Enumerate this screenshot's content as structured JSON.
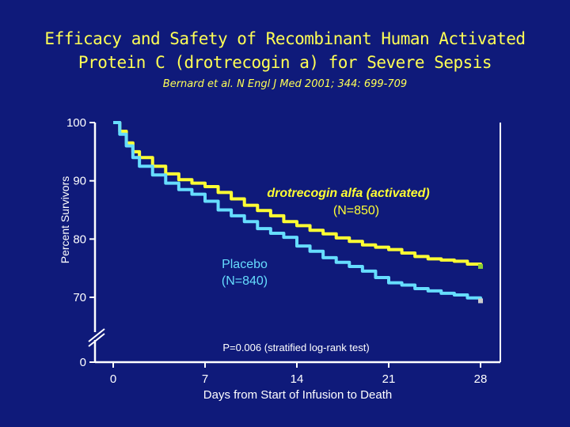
{
  "title_line1": "Efficacy and Safety of Recombinant Human Activated",
  "title_line2": "Protein C (drotrecogin a) for Severe Sepsis",
  "citation": "Bernard et al. N Engl J Med 2001; 344: 699-709",
  "colors": {
    "background": "#0f1a7a",
    "drotrecogin": "#ffff33",
    "placebo": "#66ddff",
    "axis": "#ffffff"
  },
  "chart_data": {
    "type": "line",
    "xlabel": "Days from Start of Infusion to Death",
    "ylabel": "Percent Survivors",
    "x_ticks": [
      "0",
      "7",
      "14",
      "21",
      "28"
    ],
    "y_ticks": [
      "100",
      "90",
      "80",
      "70",
      "0"
    ],
    "xlim": [
      0,
      28
    ],
    "ylim": [
      70,
      100
    ],
    "y_axis_break": true,
    "grid": false,
    "series": [
      {
        "name": "drotrecogin alfa (activated)",
        "n_label": "(N=850)",
        "x": [
          0,
          0.5,
          1,
          1.5,
          2,
          3,
          4,
          5,
          6,
          7,
          8,
          9,
          10,
          11,
          12,
          13,
          14,
          15,
          16,
          17,
          18,
          19,
          20,
          21,
          22,
          23,
          24,
          25,
          26,
          27,
          28
        ],
        "y": [
          100,
          98.5,
          96.5,
          95,
          94,
          92.5,
          91.2,
          90.2,
          89.6,
          89,
          88,
          86.9,
          85.8,
          84.9,
          84,
          83,
          82.3,
          81.5,
          80.9,
          80.2,
          79.6,
          79,
          78.6,
          78.2,
          77.6,
          77,
          76.6,
          76.4,
          76.2,
          75.7,
          75.3
        ]
      },
      {
        "name": "Placebo",
        "n_label": "(N=840)",
        "x": [
          0,
          0.5,
          1,
          1.5,
          2,
          3,
          4,
          5,
          6,
          7,
          8,
          9,
          10,
          11,
          12,
          13,
          14,
          15,
          16,
          17,
          18,
          19,
          20,
          21,
          22,
          23,
          24,
          25,
          26,
          27,
          28
        ],
        "y": [
          100,
          98,
          96,
          94,
          92.5,
          91,
          89.6,
          88.5,
          87.7,
          86.5,
          85,
          84,
          83,
          81.8,
          81,
          80.3,
          78.8,
          77.9,
          76.8,
          76,
          75.3,
          74.5,
          73.4,
          72.5,
          72.1,
          71.5,
          71.1,
          70.7,
          70.4,
          69.9,
          69.4
        ]
      }
    ],
    "annotation": "P=0.006 (stratified log-rank test)"
  }
}
